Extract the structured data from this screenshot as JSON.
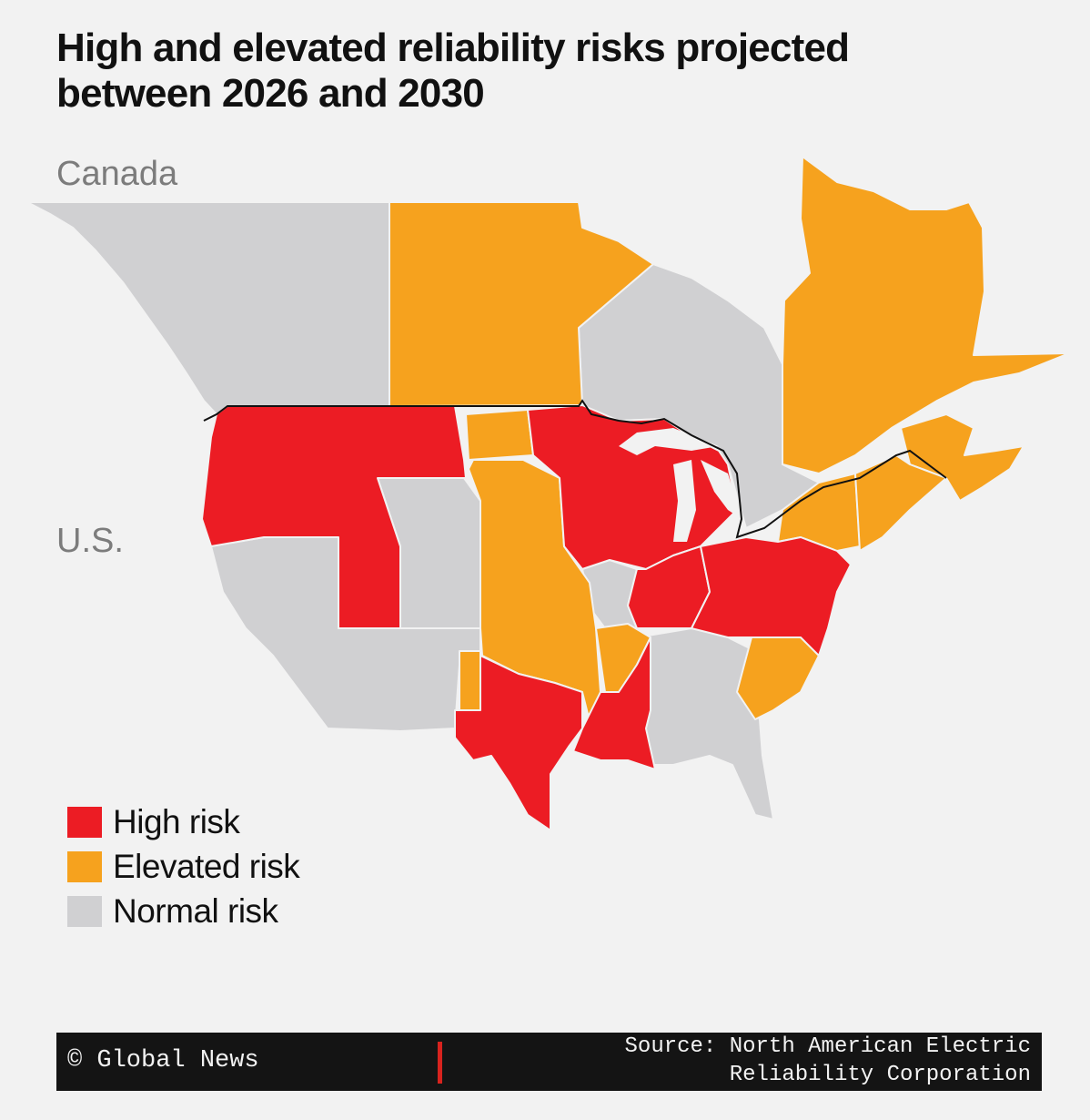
{
  "title": "High and elevated reliability risks projected between 2026 and 2030",
  "labels": {
    "canada": "Canada",
    "us": "U.S."
  },
  "colors": {
    "high": "#ec1c24",
    "elevated": "#f6a21e",
    "normal": "#d0d0d2",
    "border": "#111111",
    "background": "#f2f2f2"
  },
  "legend": [
    {
      "key": "high",
      "label": "High risk",
      "color": "#ec1c24"
    },
    {
      "key": "elevated",
      "label": "Elevated risk",
      "color": "#f6a21e"
    },
    {
      "key": "normal",
      "label": "Normal risk",
      "color": "#d0d0d2"
    }
  ],
  "footer": {
    "credit": "© Global News",
    "source_line1": "Source: North American Electric",
    "source_line2": "Reliability Corporation"
  }
}
